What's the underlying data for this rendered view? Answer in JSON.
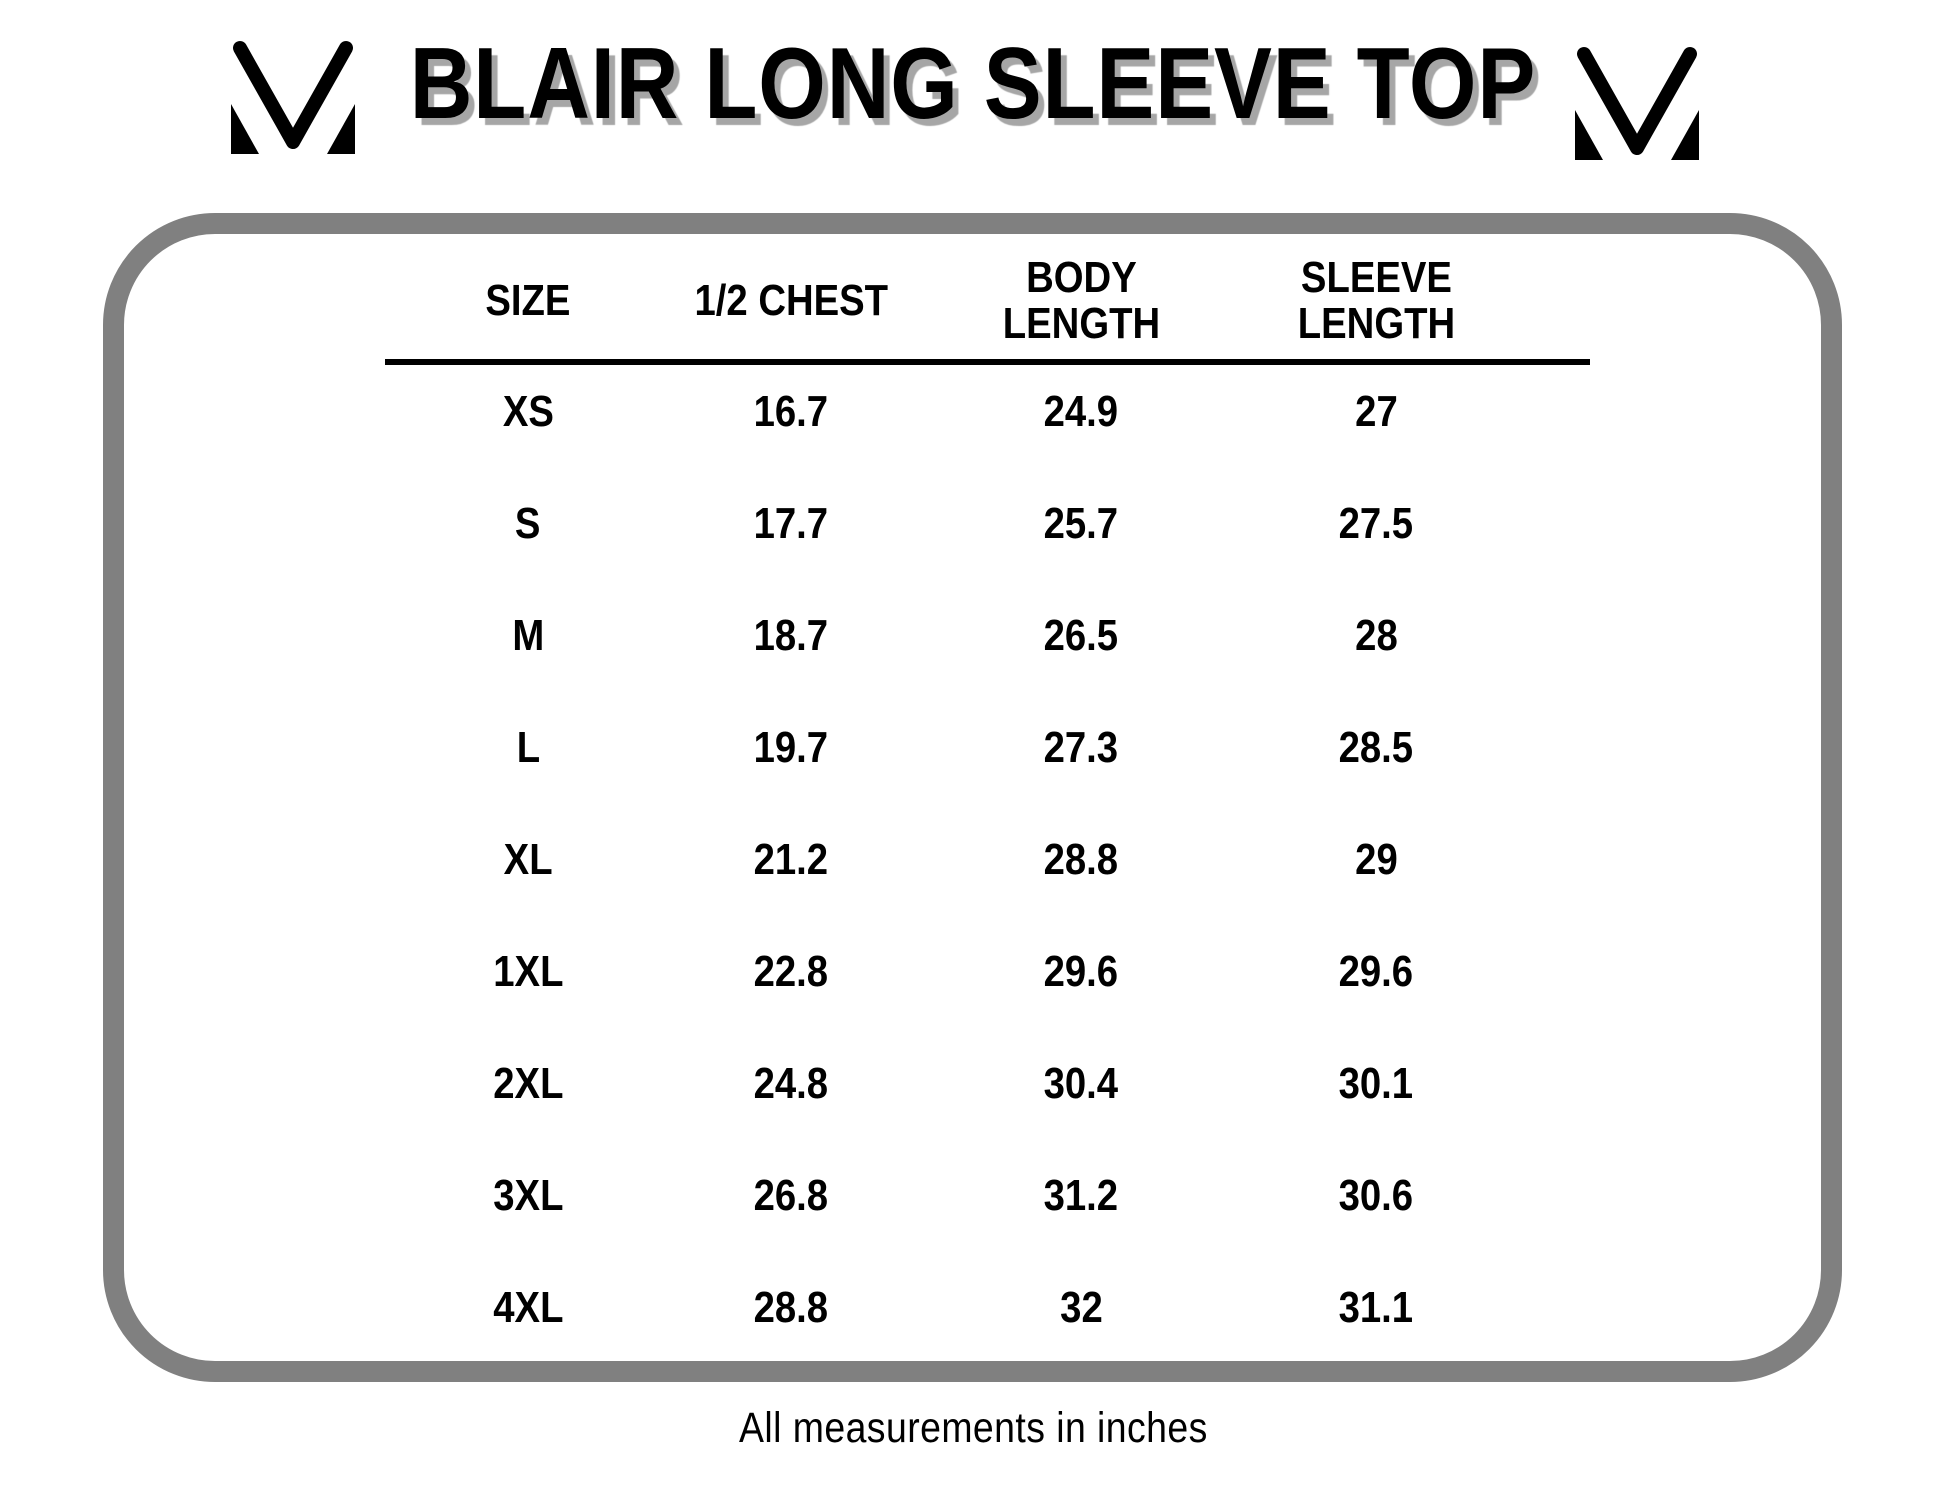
{
  "header": {
    "title": "BLAIR LONG SLEEVE TOP"
  },
  "icons": {
    "left_logo": "mv-monogram-icon",
    "right_logo": "mv-monogram-icon"
  },
  "size_table": {
    "headers": [
      {
        "lines": [
          "SIZE"
        ]
      },
      {
        "lines": [
          "1/2 CHEST"
        ]
      },
      {
        "lines": [
          "BODY",
          "LENGTH"
        ]
      },
      {
        "lines": [
          "SLEEVE",
          "LENGTH"
        ]
      }
    ],
    "rows": [
      [
        "XS",
        "16.7",
        "24.9",
        "27"
      ],
      [
        "S",
        "17.7",
        "25.7",
        "27.5"
      ],
      [
        "M",
        "18.7",
        "26.5",
        "28"
      ],
      [
        "L",
        "19.7",
        "27.3",
        "28.5"
      ],
      [
        "XL",
        "21.2",
        "28.8",
        "29"
      ],
      [
        "1XL",
        "22.8",
        "29.6",
        "29.6"
      ],
      [
        "2XL",
        "24.8",
        "30.4",
        "30.1"
      ],
      [
        "3XL",
        "26.8",
        "31.2",
        "30.6"
      ],
      [
        "4XL",
        "28.8",
        "32",
        "31.1"
      ]
    ]
  },
  "footer": {
    "note": "All measurements in inches"
  },
  "colors": {
    "text": "#000000",
    "panel_border_gray": "#808080",
    "title_shadow_gray": "#a6a6a6",
    "background": "#ffffff"
  }
}
